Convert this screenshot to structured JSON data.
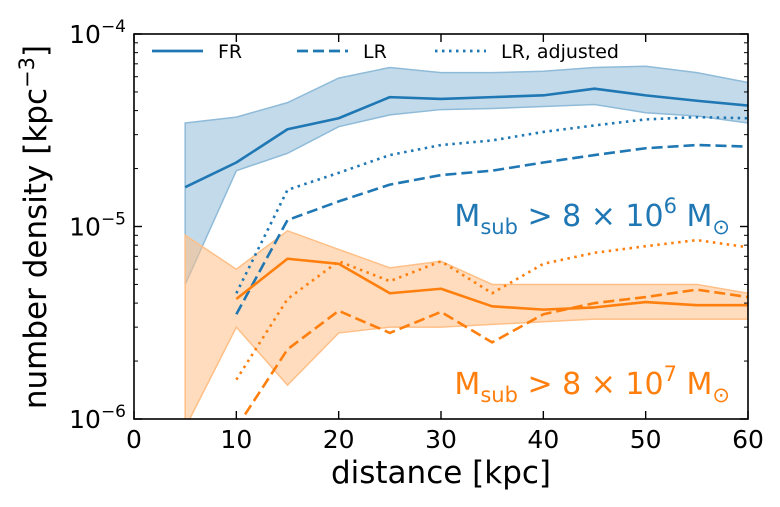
{
  "chart_data": {
    "type": "line",
    "xlabel": "distance [kpc]",
    "ylabel": {
      "base": "number density [kpc",
      "sup": "−3",
      "close": "]"
    },
    "xlim": [
      0,
      60
    ],
    "ylim": [
      1e-06,
      0.0001
    ],
    "yscale": "log",
    "x_ticks": [
      0,
      10,
      20,
      30,
      40,
      50,
      60
    ],
    "y_ticks": [
      {
        "value": 1e-06,
        "base": "10",
        "exp": "−6"
      },
      {
        "value": 1e-05,
        "base": "10",
        "exp": "−5"
      },
      {
        "value": 0.0001,
        "base": "10",
        "exp": "−4"
      }
    ],
    "legend": {
      "position": "top",
      "entries": [
        {
          "label": "FR",
          "style": "solid"
        },
        {
          "label": "LR",
          "style": "dashed"
        },
        {
          "label": "LR, adjusted",
          "style": "dotted"
        }
      ]
    },
    "groups": [
      {
        "color": "#1f77b4",
        "band_color": "#8fbbd9",
        "annotation": {
          "prefix": "M",
          "sub": "sub",
          "mid": " > 8 × 10",
          "sup": "6",
          "suffix": " M",
          "msub": "⊙"
        },
        "band": {
          "x": [
            5,
            10,
            15,
            20,
            25,
            30,
            35,
            40,
            45,
            50,
            55,
            60
          ],
          "lower": [
            5e-06,
            1.95e-05,
            2.4e-05,
            3.3e-05,
            3.8e-05,
            4.05e-05,
            4.1e-05,
            4.2e-05,
            4.3e-05,
            3.9e-05,
            3.75e-05,
            3.45e-05
          ],
          "upper": [
            3.45e-05,
            3.7e-05,
            4.4e-05,
            5.9e-05,
            6.7e-05,
            6.3e-05,
            6.3e-05,
            6.4e-05,
            6.7e-05,
            6.8e-05,
            6.3e-05,
            5.6e-05
          ]
        },
        "series": [
          {
            "name": "FR",
            "style": "solid",
            "x": [
              5,
              10,
              15,
              20,
              25,
              30,
              35,
              40,
              45,
              50,
              55,
              60
            ],
            "values": [
              1.6e-05,
              2.15e-05,
              3.2e-05,
              3.65e-05,
              4.7e-05,
              4.6e-05,
              4.7e-05,
              4.8e-05,
              5.2e-05,
              4.8e-05,
              4.5e-05,
              4.25e-05
            ]
          },
          {
            "name": "LR",
            "style": "dashed",
            "x": [
              10,
              15,
              20,
              25,
              30,
              35,
              40,
              45,
              50,
              55,
              60
            ],
            "values": [
              3.5e-06,
              1.08e-05,
              1.35e-05,
              1.65e-05,
              1.85e-05,
              1.95e-05,
              2.15e-05,
              2.35e-05,
              2.55e-05,
              2.65e-05,
              2.6e-05
            ]
          },
          {
            "name": "LR, adjusted",
            "style": "dotted",
            "x": [
              10,
              15,
              20,
              25,
              30,
              35,
              40,
              45,
              50,
              55,
              60
            ],
            "values": [
              4.5e-06,
              1.55e-05,
              1.9e-05,
              2.35e-05,
              2.65e-05,
              2.8e-05,
              3.1e-05,
              3.35e-05,
              3.6e-05,
              3.7e-05,
              3.65e-05
            ]
          }
        ]
      },
      {
        "color": "#ff7f0e",
        "band_color": "#ffbf86",
        "annotation": {
          "prefix": "M",
          "sub": "sub",
          "mid": " > 8 × 10",
          "sup": "7",
          "suffix": " M",
          "msub": "⊙"
        },
        "band": {
          "x": [
            5,
            10,
            15,
            20,
            25,
            30,
            35,
            40,
            45,
            50,
            55,
            60
          ],
          "lower": [
            9e-07,
            3e-06,
            1.5e-06,
            2.8e-06,
            3e-06,
            3e-06,
            3.1e-06,
            3.2e-06,
            3.3e-06,
            3.3e-06,
            3.3e-06,
            3.3e-06
          ],
          "upper": [
            9e-06,
            6e-06,
            9.5e-06,
            7.6e-06,
            6.1e-06,
            6.6e-06,
            5e-06,
            5e-06,
            5e-06,
            5e-06,
            5e-06,
            4.5e-06
          ]
        },
        "series": [
          {
            "name": "FR",
            "style": "solid",
            "x": [
              10,
              15,
              20,
              25,
              30,
              35,
              40,
              45,
              50,
              55,
              60
            ],
            "values": [
              4.2e-06,
              6.8e-06,
              6.4e-06,
              4.5e-06,
              4.75e-06,
              3.85e-06,
              3.7e-06,
              3.8e-06,
              4.05e-06,
              3.9e-06,
              3.9e-06
            ]
          },
          {
            "name": "LR",
            "style": "dashed",
            "x": [
              10,
              15,
              20,
              25,
              30,
              35,
              40,
              45,
              50,
              55,
              60
            ],
            "values": [
              9e-07,
              2.3e-06,
              3.65e-06,
              2.8e-06,
              3.6e-06,
              2.5e-06,
              3.5e-06,
              4e-06,
              4.3e-06,
              4.7e-06,
              4.3e-06
            ]
          },
          {
            "name": "LR, adjusted",
            "style": "dotted",
            "x": [
              10,
              15,
              20,
              25,
              30,
              35,
              40,
              45,
              50,
              55,
              60
            ],
            "values": [
              1.6e-06,
              4.2e-06,
              6.6e-06,
              5.2e-06,
              6.6e-06,
              4.5e-06,
              6.4e-06,
              7.3e-06,
              7.9e-06,
              8.5e-06,
              7.8e-06
            ]
          }
        ]
      }
    ]
  }
}
